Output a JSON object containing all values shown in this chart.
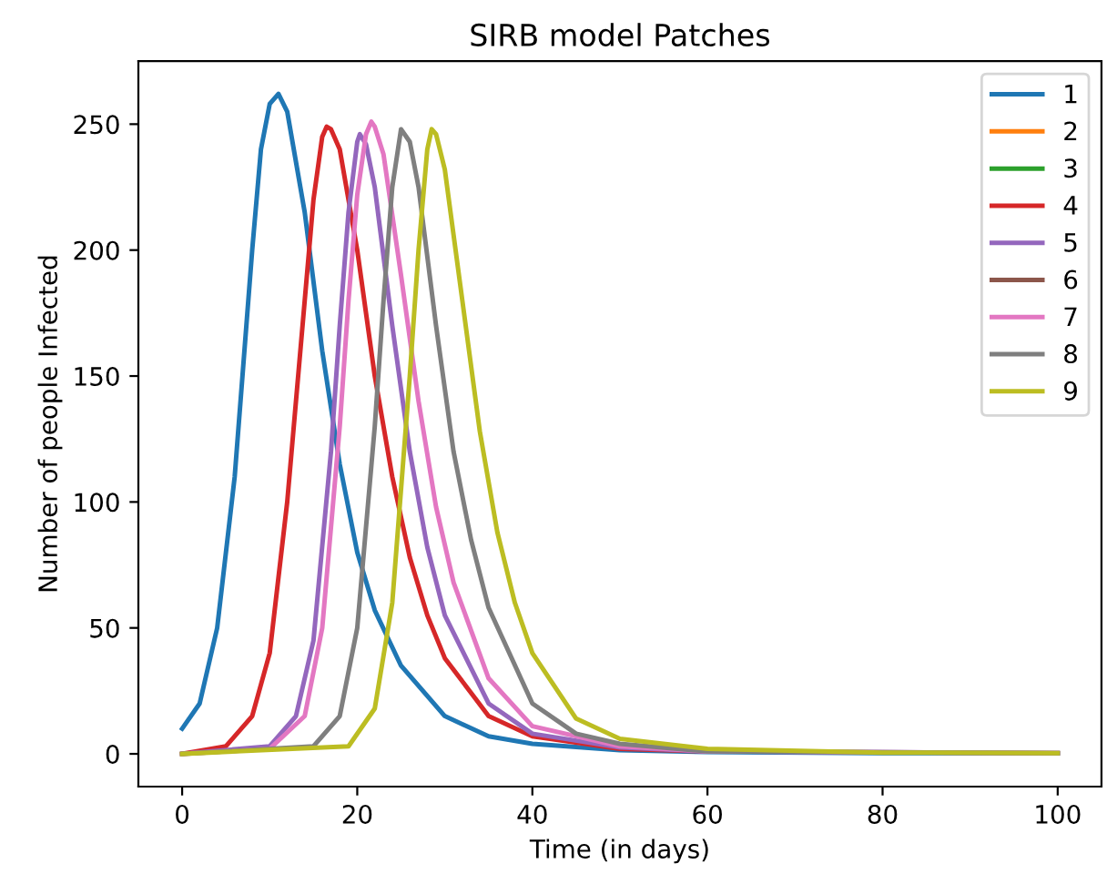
{
  "chart_data": {
    "type": "line",
    "title": "SIRB model Patches",
    "xlabel": "Time (in days)",
    "ylabel": "Number of people Infected",
    "xlim": [
      -5,
      105
    ],
    "ylim": [
      -13,
      275
    ],
    "xticks": [
      0,
      20,
      40,
      60,
      80,
      100
    ],
    "yticks": [
      0,
      50,
      100,
      150,
      200,
      250
    ],
    "grid": false,
    "legend": "top right",
    "marker": "none",
    "line_style": "solid",
    "series": [
      {
        "name": "1",
        "color": "#1f77b4",
        "x": [
          0,
          2,
          4,
          6,
          8,
          9,
          10,
          11,
          12,
          14,
          16,
          18,
          20,
          22,
          25,
          30,
          35,
          40,
          50,
          60,
          80,
          100
        ],
        "values": [
          10,
          20,
          50,
          110,
          200,
          240,
          258,
          262,
          255,
          215,
          160,
          115,
          80,
          57,
          35,
          15,
          7,
          4,
          1.5,
          0.7,
          0.3,
          0.2
        ]
      },
      {
        "name": "2",
        "color": "#ff7f0e"
      },
      {
        "name": "3",
        "color": "#2ca02c"
      },
      {
        "name": "4",
        "color": "#d62728",
        "x": [
          0,
          5,
          8,
          10,
          12,
          14,
          15,
          16,
          16.5,
          17,
          18,
          20,
          22,
          24,
          26,
          28,
          30,
          35,
          40,
          50,
          60
        ],
        "values": [
          0,
          3,
          15,
          40,
          100,
          180,
          220,
          245,
          249,
          248,
          240,
          200,
          150,
          110,
          78,
          55,
          38,
          15,
          7,
          2,
          1
        ]
      },
      {
        "name": "5",
        "color": "#9467bd",
        "x": [
          0,
          10,
          13,
          15,
          17,
          18,
          19,
          20,
          20.3,
          21,
          22,
          24,
          26,
          28,
          30,
          35,
          40,
          50,
          60,
          100
        ],
        "values": [
          0,
          3,
          15,
          45,
          120,
          170,
          215,
          243,
          246,
          242,
          225,
          170,
          120,
          82,
          55,
          20,
          8,
          2.5,
          1,
          0.3
        ]
      },
      {
        "name": "6",
        "color": "#8c564b"
      },
      {
        "name": "7",
        "color": "#e377c2",
        "x": [
          0,
          10,
          14,
          16,
          18,
          19,
          20,
          21,
          21.6,
          22,
          23,
          25,
          27,
          29,
          31,
          35,
          40,
          50,
          60,
          100
        ],
        "values": [
          0,
          2,
          15,
          50,
          130,
          180,
          222,
          246,
          251,
          249,
          238,
          190,
          140,
          98,
          68,
          30,
          11,
          3,
          1,
          0.3
        ]
      },
      {
        "name": "8",
        "color": "#7f7f7f",
        "x": [
          0,
          15,
          18,
          20,
          22,
          23,
          24,
          25,
          26,
          27,
          29,
          31,
          33,
          35,
          40,
          45,
          50,
          60,
          100
        ],
        "values": [
          0,
          3,
          15,
          50,
          130,
          180,
          225,
          248,
          243,
          225,
          170,
          120,
          85,
          58,
          20,
          8,
          4,
          1,
          0.3
        ]
      },
      {
        "name": "9",
        "color": "#bcbd22",
        "x": [
          0,
          19,
          22,
          24,
          26,
          27,
          28,
          28.5,
          29,
          30,
          32,
          34,
          36,
          38,
          40,
          45,
          50,
          60,
          80,
          100
        ],
        "values": [
          0,
          3,
          18,
          60,
          150,
          200,
          240,
          248,
          246,
          232,
          180,
          128,
          88,
          60,
          40,
          14,
          6,
          2,
          0.5,
          0.3
        ]
      }
    ]
  }
}
